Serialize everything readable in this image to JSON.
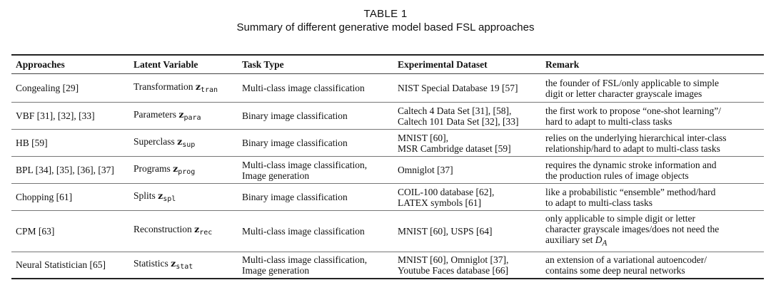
{
  "caption": {
    "label": "TABLE 1",
    "title": "Summary of different generative model based FSL approaches"
  },
  "table": {
    "headers": [
      "Approaches",
      "Latent Variable",
      "Task Type",
      "Experimental Dataset",
      "Remark"
    ],
    "rows": [
      {
        "approach": "Congealing [29]",
        "latent_name": "Transformation",
        "latent_symbol": "z",
        "latent_sub": "tran",
        "task": [
          "Multi-class image classification"
        ],
        "dataset": [
          "NIST Special Database 19 [57]"
        ],
        "remark": [
          "the founder of FSL/only applicable to simple",
          "digit or letter character grayscale images"
        ]
      },
      {
        "approach": "VBF [31], [32], [33]",
        "latent_name": "Parameters",
        "latent_symbol": "z",
        "latent_sub": "para",
        "task": [
          "Binary image classification"
        ],
        "dataset": [
          "Caltech 4 Data Set [31], [58],",
          "Caltech 101 Data Set [32], [33]"
        ],
        "remark": [
          "the first work to propose “one-shot learning”/",
          "hard to adapt to multi-class tasks"
        ]
      },
      {
        "approach": "HB [59]",
        "latent_name": "Superclass",
        "latent_symbol": "z",
        "latent_sub": "sup",
        "task": [
          "Binary image classification"
        ],
        "dataset": [
          "MNIST [60],",
          "MSR Cambridge dataset [59]"
        ],
        "remark": [
          "relies on the underlying hierarchical inter-class",
          "relationship/hard to adapt to multi-class tasks"
        ]
      },
      {
        "approach": "BPL [34], [35], [36], [37]",
        "latent_name": "Programs",
        "latent_symbol": "z",
        "latent_sub": "prog",
        "task": [
          "Multi-class image classification,",
          "Image generation"
        ],
        "dataset": [
          "Omniglot [37]"
        ],
        "remark": [
          "requires the dynamic stroke information and",
          "the production rules of image objects"
        ]
      },
      {
        "approach": "Chopping [61]",
        "latent_name": "Splits",
        "latent_symbol": "z",
        "latent_sub": "spl",
        "task": [
          "Binary image classification"
        ],
        "dataset": [
          "COIL-100 database [62],",
          "LATEX symbols [61]"
        ],
        "remark": [
          "like a probabilistic “ensemble” method/hard",
          "to adapt to multi-class tasks"
        ]
      },
      {
        "approach": "CPM [63]",
        "latent_name": "Reconstruction",
        "latent_symbol": "z",
        "latent_sub": "rec",
        "task": [
          "Multi-class image classification"
        ],
        "dataset": [
          "MNIST [60], USPS [64]"
        ],
        "remark": [
          "only applicable to simple digit or letter",
          "character grayscale images/does not need the",
          "auxiliary set D_A"
        ]
      },
      {
        "approach": "Neural Statistician [65]",
        "latent_name": "Statistics",
        "latent_symbol": "z",
        "latent_sub": "stat",
        "task": [
          "Multi-class image classification,",
          "Image generation"
        ],
        "dataset": [
          "MNIST [60], Omniglot [37],",
          "Youtube Faces database [66]"
        ],
        "remark": [
          "an extension of a variational autoencoder/",
          "contains some deep neural networks"
        ]
      }
    ]
  }
}
